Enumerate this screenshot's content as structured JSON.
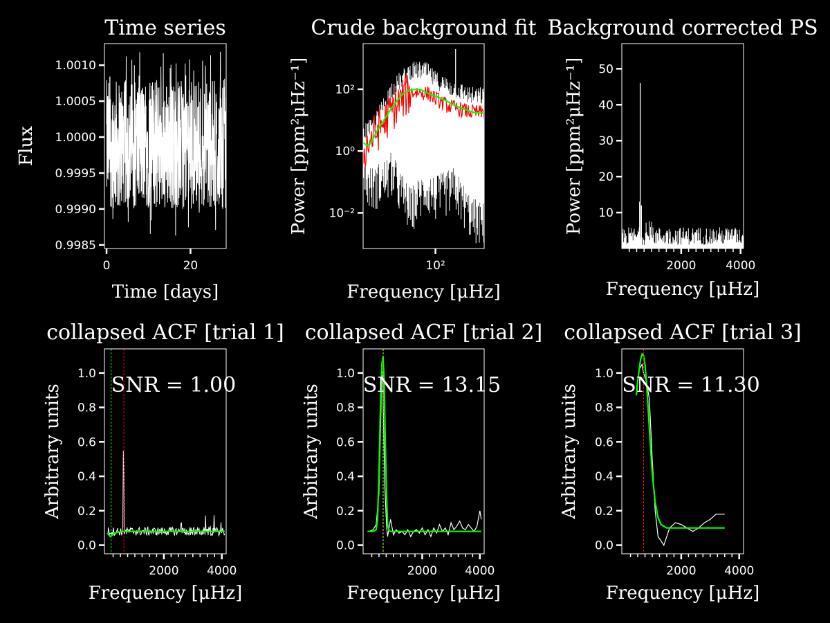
{
  "colors": {
    "background": "#000000",
    "foreground": "#ffffff",
    "fit": "#00ff00",
    "red": "#ff0000"
  },
  "chart_data": [
    {
      "id": "ts",
      "type": "line",
      "title": "Time series",
      "xlabel": "Time [days]",
      "ylabel": "Flux",
      "xlim": [
        -0.5,
        28.5
      ],
      "ylim": [
        0.99845,
        1.0013
      ],
      "xticks": [
        {
          "v": 0,
          "t": "0"
        },
        {
          "v": 20,
          "t": "20"
        }
      ],
      "yticks": [
        {
          "v": 0.9985,
          "t": "0.9985"
        },
        {
          "v": 0.999,
          "t": "0.9990"
        },
        {
          "v": 0.9995,
          "t": "0.9995"
        },
        {
          "v": 1.0,
          "t": "1.0000"
        },
        {
          "v": 1.0005,
          "t": "1.0005"
        },
        {
          "v": 1.001,
          "t": "1.0010"
        }
      ],
      "series": [
        {
          "kind": "noise",
          "color": "#ffffff",
          "x_range": [
            0,
            28.5
          ],
          "center": 0.99995,
          "band": [
            0.999,
            1.0008
          ],
          "spikes": [
            0.9986,
            1.0012
          ]
        }
      ]
    },
    {
      "id": "bg",
      "type": "line",
      "title": "Crude background fit",
      "xlabel": "Frequency [μHz]",
      "ylabel": "Power [ppm²μHz⁻¹]",
      "xscale": "log",
      "yscale": "log",
      "xlim": [
        7,
        600
      ],
      "ylim": [
        0.0007,
        3000
      ],
      "xticks": [
        {
          "v": 100,
          "t": "10²"
        }
      ],
      "yticks": [
        {
          "v": 0.01,
          "t": "10⁻²"
        },
        {
          "v": 1,
          "t": "10⁰"
        },
        {
          "v": 100,
          "t": "10²"
        }
      ],
      "series": [
        {
          "name": "",
          "color": "#ffffff",
          "kind": "spectrum_raw",
          "x": [
            7,
            10,
            20,
            40,
            70,
            100,
            200,
            400,
            600
          ],
          "y": [
            2,
            3,
            50,
            200,
            200,
            100,
            50,
            30,
            30
          ],
          "low": [
            0.02,
            0.01,
            0.03,
            0.002,
            0.01,
            0.005,
            0.01,
            0.001,
            0.0007
          ]
        },
        {
          "name": "",
          "color": "#ff0000",
          "kind": "spectrum_smooth",
          "x": [
            7,
            8,
            10,
            15,
            20,
            30,
            40,
            60,
            80,
            100,
            150,
            200,
            300,
            400,
            600
          ],
          "y": [
            0.8,
            1.5,
            3,
            8,
            20,
            50,
            80,
            80,
            70,
            50,
            30,
            25,
            20,
            18,
            17
          ]
        },
        {
          "name": "",
          "color": "#00ff00",
          "kind": "fit",
          "x": [
            7,
            8,
            9,
            10,
            12,
            15,
            20,
            25,
            30,
            40,
            50,
            60,
            80,
            100,
            150,
            200,
            300,
            400,
            500,
            600
          ],
          "y": [
            1.9,
            1.5,
            1.7,
            2.4,
            5,
            10,
            25,
            45,
            70,
            95,
            100,
            95,
            70,
            60,
            42,
            30,
            22,
            18,
            17,
            17
          ]
        }
      ]
    },
    {
      "id": "ps",
      "type": "line",
      "title": "Background corrected PS",
      "xlabel": "Frequency [μHz]",
      "ylabel": "Power [ppm²μHz⁻¹]",
      "xlim": [
        0,
        4100
      ],
      "ylim": [
        0,
        57
      ],
      "xticks": [
        {
          "v": 2000,
          "t": "2000"
        },
        {
          "v": 4000,
          "t": "4000"
        }
      ],
      "xminor": [
        250,
        500,
        750,
        1000,
        1250,
        1500,
        1750,
        2250,
        2500,
        2750,
        3000,
        3250,
        3500,
        3750
      ],
      "yticks": [
        {
          "v": 10,
          "t": "10"
        },
        {
          "v": 20,
          "t": "20"
        },
        {
          "v": 30,
          "t": "30"
        },
        {
          "v": 40,
          "t": "40"
        },
        {
          "v": 50,
          "t": "50"
        }
      ],
      "series": [
        {
          "kind": "psnoise",
          "color": "#ffffff",
          "x_range": [
            0,
            4100
          ],
          "peaks": [
            {
              "x": 620,
              "y": 46
            },
            {
              "x": 600,
              "y": 13
            },
            {
              "x": 660,
              "y": 12
            }
          ]
        }
      ]
    },
    {
      "id": "acf1",
      "type": "line",
      "title": "collapsed ACF [trial 1]",
      "xlabel": "Frequency [μHz]",
      "ylabel": "Arbitrary units",
      "xlim": [
        -50,
        4150
      ],
      "ylim": [
        -0.05,
        1.14
      ],
      "xticks": [
        {
          "v": 2000,
          "t": "2000"
        },
        {
          "v": 4000,
          "t": "4000"
        }
      ],
      "xminor": [
        250,
        500,
        750,
        1000,
        1250,
        1500,
        1750,
        2250,
        2500,
        2750,
        3000,
        3250,
        3500,
        3750
      ],
      "yticks": [
        {
          "v": 0,
          "t": "0.0"
        },
        {
          "v": 0.2,
          "t": "0.2"
        },
        {
          "v": 0.4,
          "t": "0.4"
        },
        {
          "v": 0.6,
          "t": "0.6"
        },
        {
          "v": 0.8,
          "t": "0.8"
        },
        {
          "v": 1.0,
          "t": "1.0"
        }
      ],
      "snr_label": "SNR = 1.00",
      "vlines": [
        {
          "x": 180,
          "color": "#00ff00"
        },
        {
          "x": 620,
          "color": "#ff0000"
        }
      ],
      "series": [
        {
          "name": "",
          "color": "#ffffff",
          "kind": "acfraw1",
          "x": [
            50,
            300,
            500,
            580,
            600,
            610,
            620,
            650,
            700,
            1000,
            1500,
            2000,
            2500,
            3000,
            3500,
            3700,
            3900,
            4100
          ],
          "y": [
            0.07,
            0.06,
            0.08,
            0.2,
            0.75,
            0.8,
            0.6,
            0.1,
            0.06,
            0.08,
            0.07,
            0.1,
            0.08,
            0.1,
            0.08,
            0.15,
            0.12,
            0.08
          ]
        },
        {
          "name": "",
          "color": "#00ff00",
          "kind": "line",
          "x": [
            50,
            150,
            200,
            300,
            400,
            600,
            1000,
            2000,
            3000,
            4100
          ],
          "y": [
            0.07,
            0.05,
            0.055,
            0.07,
            0.075,
            0.08,
            0.08,
            0.08,
            0.08,
            0.08
          ]
        }
      ]
    },
    {
      "id": "acf2",
      "type": "line",
      "title": "collapsed ACF [trial 2]",
      "xlabel": "Frequency [μHz]",
      "ylabel": "Arbitrary units",
      "xlim": [
        -50,
        4150
      ],
      "ylim": [
        -0.05,
        1.14
      ],
      "xticks": [
        {
          "v": 2000,
          "t": "2000"
        },
        {
          "v": 4000,
          "t": "4000"
        }
      ],
      "xminor": [
        250,
        500,
        750,
        1000,
        1250,
        1500,
        1750,
        2250,
        2500,
        2750,
        3000,
        3250,
        3500,
        3750
      ],
      "yticks": [
        {
          "v": 0,
          "t": "0.0"
        },
        {
          "v": 0.2,
          "t": "0.2"
        },
        {
          "v": 0.4,
          "t": "0.4"
        },
        {
          "v": 0.6,
          "t": "0.6"
        },
        {
          "v": 0.8,
          "t": "0.8"
        },
        {
          "v": 1.0,
          "t": "1.0"
        }
      ],
      "snr_label": "SNR = 13.15",
      "vlines": [
        {
          "x": 620,
          "color": "#ff0000"
        },
        {
          "x": 650,
          "color": "#00ff00"
        }
      ],
      "series": [
        {
          "name": "",
          "color": "#ffffff",
          "kind": "line",
          "x": [
            150,
            300,
            400,
            500,
            560,
            600,
            630,
            660,
            700,
            760,
            800,
            900,
            1000,
            1100,
            1200,
            1300,
            1400,
            1500,
            1600,
            1700,
            1800,
            1900,
            2000,
            2100,
            2200,
            2300,
            2400,
            2500,
            2600,
            2700,
            2800,
            2900,
            3000,
            3100,
            3200,
            3300,
            3400,
            3500,
            3600,
            3700,
            3800,
            3900,
            4000,
            4050
          ],
          "y": [
            0.08,
            0.09,
            0.12,
            0.3,
            0.7,
            1.02,
            1.0,
            0.7,
            0.35,
            0.12,
            0.05,
            0.15,
            0.06,
            0.09,
            0.07,
            0.08,
            0.06,
            0.09,
            0.05,
            0.08,
            0.09,
            0.07,
            0.1,
            0.06,
            0.09,
            0.05,
            0.1,
            0.07,
            0.12,
            0.08,
            0.1,
            0.06,
            0.13,
            0.09,
            0.11,
            0.14,
            0.1,
            0.09,
            0.12,
            0.1,
            0.08,
            0.11,
            0.2,
            0.15
          ]
        },
        {
          "name": "",
          "color": "#00ff00",
          "kind": "line",
          "x": [
            100,
            300,
            400,
            450,
            500,
            550,
            600,
            640,
            680,
            720,
            760,
            800,
            850,
            900,
            1000,
            2000,
            3000,
            4050
          ],
          "y": [
            0.08,
            0.08,
            0.09,
            0.15,
            0.4,
            0.8,
            1.05,
            1.1,
            0.95,
            0.6,
            0.3,
            0.12,
            0.085,
            0.08,
            0.08,
            0.08,
            0.08,
            0.08
          ]
        }
      ]
    },
    {
      "id": "acf3",
      "type": "line",
      "title": "collapsed ACF [trial 3]",
      "xlabel": "Frequency [μHz]",
      "ylabel": "Arbitrary units",
      "xlim": [
        -50,
        4150
      ],
      "ylim": [
        -0.05,
        1.14
      ],
      "xticks": [
        {
          "v": 2000,
          "t": "2000"
        },
        {
          "v": 4000,
          "t": "4000"
        }
      ],
      "xminor": [
        250,
        500,
        750,
        1000,
        1250,
        1500,
        1750,
        2250,
        2500,
        2750,
        3000,
        3250,
        3500,
        3750
      ],
      "yticks": [
        {
          "v": 0,
          "t": "0.0"
        },
        {
          "v": 0.2,
          "t": "0.2"
        },
        {
          "v": 0.4,
          "t": "0.4"
        },
        {
          "v": 0.6,
          "t": "0.6"
        },
        {
          "v": 0.8,
          "t": "0.8"
        },
        {
          "v": 1.0,
          "t": "1.0"
        }
      ],
      "snr_label": "SNR = 11.30",
      "vlines": [
        {
          "x": 700,
          "color": "#00ff00"
        },
        {
          "x": 700,
          "color": "#ff0000"
        }
      ],
      "series": [
        {
          "name": "",
          "color": "#ffffff",
          "kind": "line",
          "x": [
            450,
            550,
            650,
            700,
            800,
            900,
            1000,
            1100,
            1200,
            1400,
            1600,
            1800,
            2000,
            2200,
            2400,
            2600,
            2800,
            3000,
            3200,
            3400,
            3500
          ],
          "y": [
            0.9,
            1.02,
            1.05,
            1.0,
            0.95,
            0.85,
            0.5,
            0.2,
            0.05,
            0.0,
            0.1,
            0.13,
            0.12,
            0.1,
            0.08,
            0.1,
            0.13,
            0.15,
            0.18,
            0.18,
            0.18
          ]
        },
        {
          "name": "",
          "color": "#00ff00",
          "kind": "line",
          "x": [
            450,
            500,
            550,
            600,
            650,
            700,
            750,
            800,
            850,
            900,
            1000,
            1100,
            1200,
            1300,
            1500,
            2000,
            2500,
            3000,
            3500
          ],
          "y": [
            0.87,
            0.95,
            1.02,
            1.08,
            1.11,
            1.1,
            1.05,
            0.95,
            0.82,
            0.68,
            0.42,
            0.25,
            0.16,
            0.12,
            0.1,
            0.1,
            0.1,
            0.1,
            0.1
          ]
        }
      ]
    }
  ]
}
